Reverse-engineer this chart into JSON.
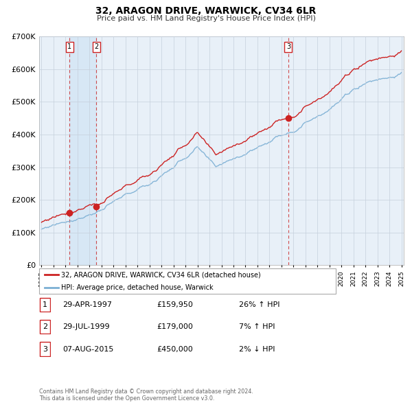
{
  "title": "32, ARAGON DRIVE, WARWICK, CV34 6LR",
  "subtitle": "Price paid vs. HM Land Registry's House Price Index (HPI)",
  "ylim": [
    0,
    700000
  ],
  "yticks": [
    0,
    100000,
    200000,
    300000,
    400000,
    500000,
    600000,
    700000
  ],
  "ytick_labels": [
    "£0",
    "£100K",
    "£200K",
    "£300K",
    "£400K",
    "£500K",
    "£600K",
    "£700K"
  ],
  "hpi_color": "#7bafd4",
  "price_color": "#cc2222",
  "background_color": "#e8f0f8",
  "grid_color": "#c5d0dc",
  "shade_color": "#d0e4f4",
  "sale_year_floats": [
    1997.33,
    1999.58,
    2015.58
  ],
  "sale_prices": [
    159950,
    179000,
    450000
  ],
  "sale_labels": [
    "1",
    "2",
    "3"
  ],
  "legend_label_price": "32, ARAGON DRIVE, WARWICK, CV34 6LR (detached house)",
  "legend_label_hpi": "HPI: Average price, detached house, Warwick",
  "table_rows": [
    {
      "num": "1",
      "date": "29-APR-1997",
      "price": "£159,950",
      "hpi": "26% ↑ HPI"
    },
    {
      "num": "2",
      "date": "29-JUL-1999",
      "price": "£179,000",
      "hpi": "7% ↑ HPI"
    },
    {
      "num": "3",
      "date": "07-AUG-2015",
      "price": "£450,000",
      "hpi": "2% ↓ HPI"
    }
  ],
  "footer": "Contains HM Land Registry data © Crown copyright and database right 2024.\nThis data is licensed under the Open Government Licence v3.0.",
  "x_start_year": 1995,
  "x_end_year": 2025,
  "vline_color": "#cc2222",
  "label_box_color": "#cc2222"
}
